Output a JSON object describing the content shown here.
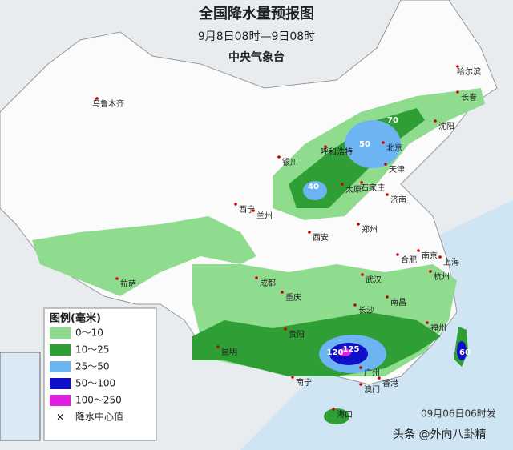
{
  "header": {
    "title": "全国降水量预报图",
    "period": "9月8日08时—9日08时",
    "issuer": "中央气象台"
  },
  "cities": [
    "乌鲁木齐",
    "哈尔滨",
    "长春",
    "沈阳",
    "北京",
    "天津",
    "呼和浩特",
    "银川",
    "太原",
    "石家庄",
    "济南",
    "西宁",
    "兰州",
    "郑州",
    "西安",
    "南京",
    "上海",
    "合肥",
    "杭州",
    "武汉",
    "成都",
    "重庆",
    "拉萨",
    "长沙",
    "南昌",
    "福州",
    "贵阳",
    "昆明",
    "南宁",
    "广州",
    "澳门",
    "香港",
    "海口"
  ],
  "rain_centers": [
    70,
    50,
    40,
    120,
    125,
    60
  ],
  "legend": {
    "title": "图例(毫米)",
    "items": [
      "0～10",
      "10～25",
      "25～50",
      "50～100",
      "100～250",
      "降水中心值"
    ]
  },
  "footer": {
    "issued": "09月06日06时发",
    "watermark": "头条 @外向八卦精"
  }
}
